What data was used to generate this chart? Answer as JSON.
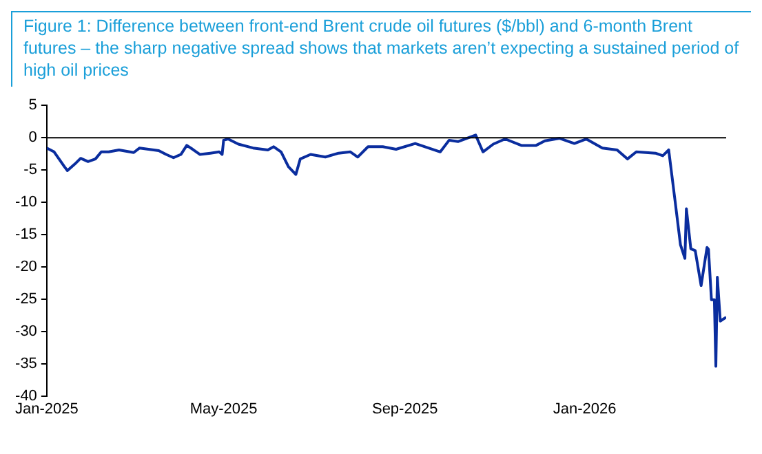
{
  "chart_data": {
    "type": "line",
    "title": "Figure 1: Difference between front-end Brent crude oil futures ($/bbl) and 6-month Brent futures – the sharp negative spread shows that markets aren’t expecting a sustained period of high oil prices",
    "x": [
      "2025-01-01",
      "2025-01-06",
      "2025-01-13",
      "2025-01-15",
      "2025-01-20",
      "2025-01-24",
      "2025-01-29",
      "2025-02-03",
      "2025-02-07",
      "2025-02-12",
      "2025-02-19",
      "2025-03-01",
      "2025-03-05",
      "2025-03-18",
      "2025-03-23",
      "2025-03-28",
      "2025-04-02",
      "2025-04-06",
      "2025-04-10",
      "2025-04-15",
      "2025-04-22",
      "2025-04-28",
      "2025-04-30",
      "2025-05-01",
      "2025-05-04",
      "2025-05-11",
      "2025-05-21",
      "2025-05-31",
      "2025-06-04",
      "2025-06-09",
      "2025-06-14",
      "2025-06-19",
      "2025-06-22",
      "2025-06-29",
      "2025-07-09",
      "2025-07-18",
      "2025-07-26",
      "2025-07-31",
      "2025-08-07",
      "2025-08-17",
      "2025-08-26",
      "2025-09-08",
      "2025-09-25",
      "2025-10-01",
      "2025-10-07",
      "2025-10-19",
      "2025-10-24",
      "2025-10-31",
      "2025-11-08",
      "2025-11-19",
      "2025-11-29",
      "2025-12-05",
      "2025-12-15",
      "2025-12-25",
      "2026-01-02",
      "2026-01-13",
      "2026-01-23",
      "2026-01-30",
      "2026-02-05",
      "2026-02-18",
      "2026-02-23",
      "2026-02-27",
      "2026-03-03",
      "2026-03-07",
      "2026-03-10",
      "2026-03-11",
      "2026-03-14",
      "2026-03-17",
      "2026-03-21",
      "2026-03-25",
      "2026-03-26",
      "2026-03-28",
      "2026-03-30",
      "2026-03-31",
      "2026-04-01",
      "2026-04-03",
      "2026-04-07"
    ],
    "series": [
      {
        "color": "#0a2d9e",
        "values": [
          -1.6,
          -2.2,
          -4.5,
          -5.1,
          -4.1,
          -3.2,
          -3.7,
          -3.3,
          -2.2,
          -2.2,
          -1.9,
          -2.3,
          -1.6,
          -2.0,
          -2.6,
          -3.1,
          -2.6,
          -1.2,
          -1.8,
          -2.6,
          -2.4,
          -2.2,
          -2.6,
          -0.4,
          -0.2,
          -1.0,
          -1.6,
          -1.9,
          -1.4,
          -2.2,
          -4.5,
          -5.7,
          -3.3,
          -2.6,
          -3.0,
          -2.4,
          -2.2,
          -3.0,
          -1.4,
          -1.4,
          -1.8,
          -0.9,
          -2.2,
          -0.4,
          -0.6,
          0.4,
          -2.2,
          -1.0,
          -0.2,
          -1.2,
          -1.2,
          -0.5,
          -0.1,
          -0.9,
          -0.2,
          -1.6,
          -1.9,
          -3.3,
          -2.2,
          -2.4,
          -2.8,
          -1.9,
          -9.2,
          -16.6,
          -18.7,
          -11.0,
          -17.2,
          -17.5,
          -22.9,
          -17.0,
          -17.3,
          -25.1,
          -25.1,
          -35.4,
          -21.6,
          -28.4,
          -27.8
        ]
      }
    ],
    "xlim": [
      "2025-01-01",
      "2026-04-07"
    ],
    "xticks": [
      {
        "value": "2025-01-01",
        "label": "Jan-2025"
      },
      {
        "value": "2025-05-01",
        "label": "May-2025"
      },
      {
        "value": "2025-09-01",
        "label": "Sep-2025"
      },
      {
        "value": "2026-01-01",
        "label": "Jan-2026"
      }
    ],
    "ylim": [
      -40,
      5
    ],
    "yticks": [
      -40,
      -35,
      -30,
      -25,
      -20,
      -15,
      -10,
      -5,
      0,
      5
    ],
    "ref_lines": [
      {
        "axis": "y",
        "value": 0,
        "color": "#000000"
      }
    ],
    "legend": false,
    "marker": "none",
    "line_style": "solid"
  }
}
